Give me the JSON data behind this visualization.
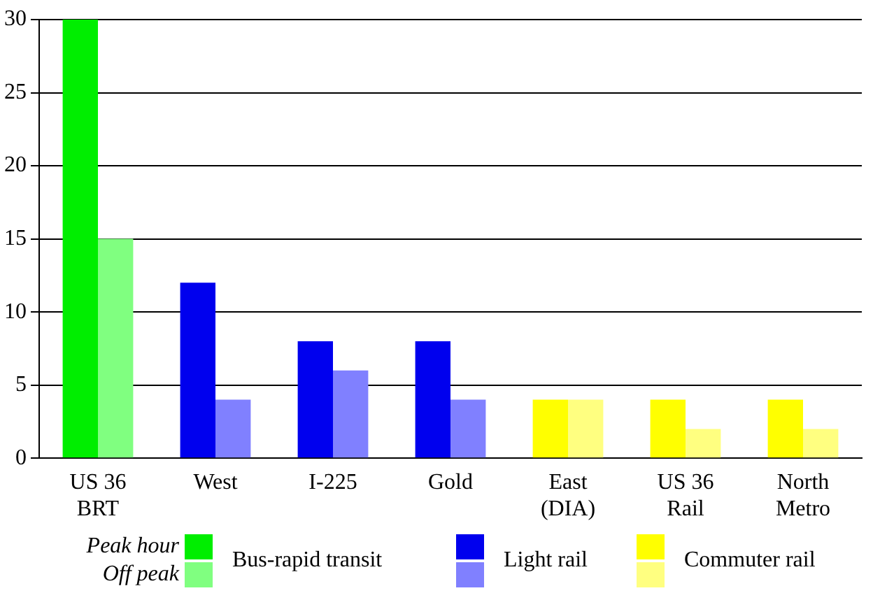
{
  "chart_data": {
    "type": "bar",
    "categories": [
      "US 36 BRT",
      "West",
      "I-225",
      "Gold",
      "East (DIA)",
      "US 36 Rail",
      "North Metro"
    ],
    "series": [
      {
        "name": "Peak hour",
        "colors": [
          "#00ee00",
          "#0000ee",
          "#0000ee",
          "#0000ee",
          "#ffff00",
          "#ffff00",
          "#ffff00"
        ],
        "values": [
          30,
          12,
          8,
          8,
          4,
          4,
          4
        ]
      },
      {
        "name": "Off peak",
        "colors": [
          "#80ff80",
          "#8080ff",
          "#8080ff",
          "#8080ff",
          "#ffff80",
          "#ffff80",
          "#ffff80"
        ],
        "values": [
          15,
          4,
          6,
          4,
          4,
          2,
          2
        ]
      }
    ],
    "annotations": [
      "Bus-rapid transit",
      "Light rail",
      "Commuter rail"
    ],
    "ylim": [
      0,
      30
    ],
    "yticks": [
      0,
      5,
      10,
      15,
      20,
      25,
      30
    ],
    "grid": "y",
    "legend": "bottom"
  }
}
